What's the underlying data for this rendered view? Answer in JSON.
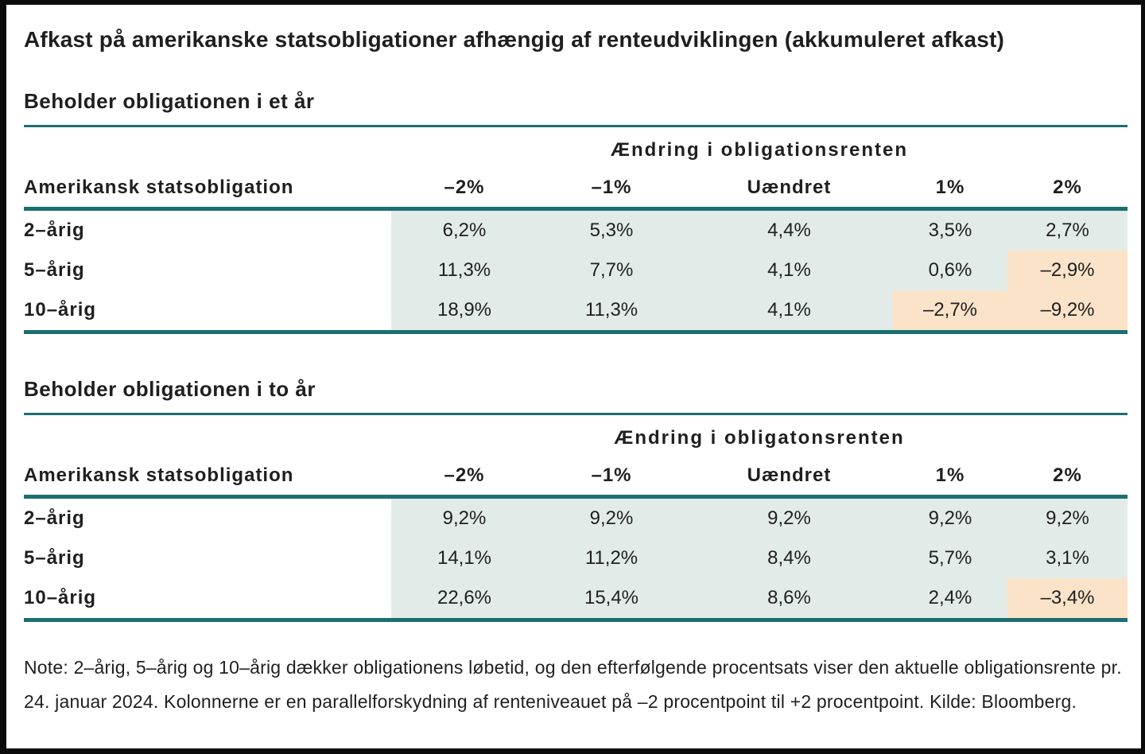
{
  "title": "Afkast på amerikanske statsobligationer afhængig af renteudviklingen (akkumuleret afkast)",
  "colors": {
    "teal_rule": "#1b6f6e",
    "positive_cell_bg": "#e3ebe8",
    "negative_cell_bg": "#fae3c9",
    "text": "#1f1f1f"
  },
  "tables": [
    {
      "section_title": "Beholder obligationen i et år",
      "group_header": "Ændring i obligationsrenten",
      "row_header": "Amerikansk statsobligation",
      "columns": [
        "–2%",
        "–1%",
        "Uændret",
        "1%",
        "2%"
      ],
      "rows": [
        {
          "label": "2–årig",
          "values": [
            "6,2%",
            "5,3%",
            "4,4%",
            "3,5%",
            "2,7%"
          ]
        },
        {
          "label": "5–årig",
          "values": [
            "11,3%",
            "7,7%",
            "4,1%",
            "0,6%",
            "–2,9%"
          ]
        },
        {
          "label": "10–årig",
          "values": [
            "18,9%",
            "11,3%",
            "4,1%",
            "–2,7%",
            "–9,2%"
          ]
        }
      ]
    },
    {
      "section_title": "Beholder obligationen i to år",
      "group_header": "Ændring i obligatonsrenten",
      "row_header": "Amerikansk statsobligation",
      "columns": [
        "–2%",
        "–1%",
        "Uændret",
        "1%",
        "2%"
      ],
      "rows": [
        {
          "label": "2–årig",
          "values": [
            "9,2%",
            "9,2%",
            "9,2%",
            "9,2%",
            "9,2%"
          ]
        },
        {
          "label": "5–årig",
          "values": [
            "14,1%",
            "11,2%",
            "8,4%",
            "5,7%",
            "3,1%"
          ]
        },
        {
          "label": "10–årig",
          "values": [
            "22,6%",
            "15,4%",
            "8,6%",
            "2,4%",
            "–3,4%"
          ]
        }
      ]
    }
  ],
  "note": "Note: 2–årig, 5–årig og 10–årig dækker obligationens løbetid, og den efterfølgende procentsats viser den aktuelle obligationsrente pr. 24. januar 2024. Kolonnerne er en parallelforskydning af renteniveauet på –2 procentpoint til +2 procentpoint. Kilde: Bloomberg.",
  "chart_data": [
    {
      "type": "table",
      "title": "Beholder obligationen i et år",
      "group_header": "Ændring i obligationsrenten",
      "row_label_header": "Amerikansk statsobligation",
      "columns": [
        "-2%",
        "-1%",
        "Uændret",
        "1%",
        "2%"
      ],
      "rows": [
        {
          "label": "2-årig",
          "values_pct": [
            6.2,
            5.3,
            4.4,
            3.5,
            2.7
          ]
        },
        {
          "label": "5-årig",
          "values_pct": [
            11.3,
            7.7,
            4.1,
            0.6,
            -2.9
          ]
        },
        {
          "label": "10-årig",
          "values_pct": [
            18.9,
            11.3,
            4.1,
            -2.7,
            -9.2
          ]
        }
      ],
      "highlight_rule": "negative values shaded orange, others light green"
    },
    {
      "type": "table",
      "title": "Beholder obligationen i to år",
      "group_header": "Ændring i obligatonsrenten",
      "row_label_header": "Amerikansk statsobligation",
      "columns": [
        "-2%",
        "-1%",
        "Uændret",
        "1%",
        "2%"
      ],
      "rows": [
        {
          "label": "2-årig",
          "values_pct": [
            9.2,
            9.2,
            9.2,
            9.2,
            9.2
          ]
        },
        {
          "label": "5-årig",
          "values_pct": [
            14.1,
            11.2,
            8.4,
            5.7,
            3.1
          ]
        },
        {
          "label": "10-årig",
          "values_pct": [
            22.6,
            15.4,
            8.6,
            2.4,
            -3.4
          ]
        }
      ],
      "highlight_rule": "negative values shaded orange, others light green"
    }
  ]
}
